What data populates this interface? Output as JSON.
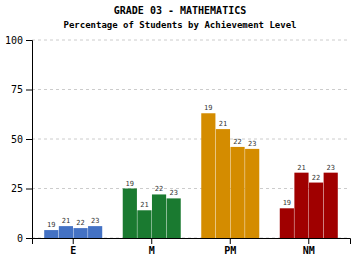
{
  "chart_data": {
    "type": "bar",
    "title": "GRADE 03 - MATHEMATICS",
    "subtitle": "Percentage of Students by Achievement Level",
    "categories": [
      "E",
      "M",
      "PM",
      "NM"
    ],
    "series": [
      {
        "name": "19",
        "values": [
          4,
          25,
          63,
          15
        ]
      },
      {
        "name": "21",
        "values": [
          6,
          14,
          55,
          33
        ]
      },
      {
        "name": "22",
        "values": [
          5,
          22,
          46,
          28
        ]
      },
      {
        "name": "23",
        "values": [
          6,
          20,
          45,
          33
        ]
      }
    ],
    "colors": [
      "#4472c4",
      "#1a7a30",
      "#d48c00",
      "#a00000"
    ],
    "ylim": [
      0,
      100
    ],
    "yticks": [
      0,
      25,
      50,
      75,
      100
    ],
    "grid": true
  }
}
